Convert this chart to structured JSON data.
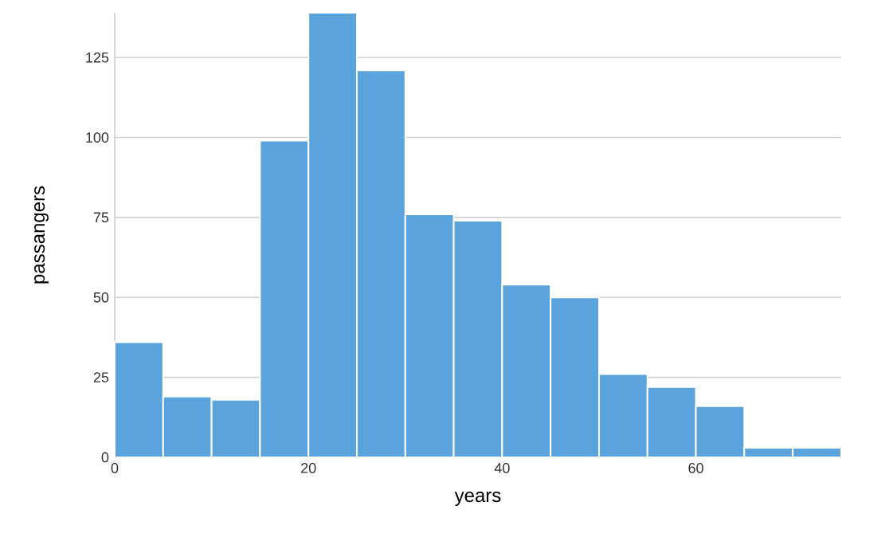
{
  "chart_data": {
    "type": "histogram",
    "xlabel": "years",
    "ylabel": "passangers",
    "color": "#5ba3dd",
    "bins": [
      0,
      5,
      10,
      15,
      20,
      25,
      30,
      35,
      40,
      45,
      50,
      55,
      60,
      65,
      70,
      75
    ],
    "values": [
      36,
      19,
      18,
      99,
      139,
      121,
      76,
      74,
      54,
      50,
      26,
      22,
      16,
      3,
      3
    ],
    "xlim": [
      0,
      75
    ],
    "xticks": [
      0,
      20,
      40,
      60
    ],
    "ylim": [
      0,
      139
    ],
    "yticks": [
      0,
      25,
      50,
      75,
      100,
      125
    ],
    "grid": "y"
  }
}
